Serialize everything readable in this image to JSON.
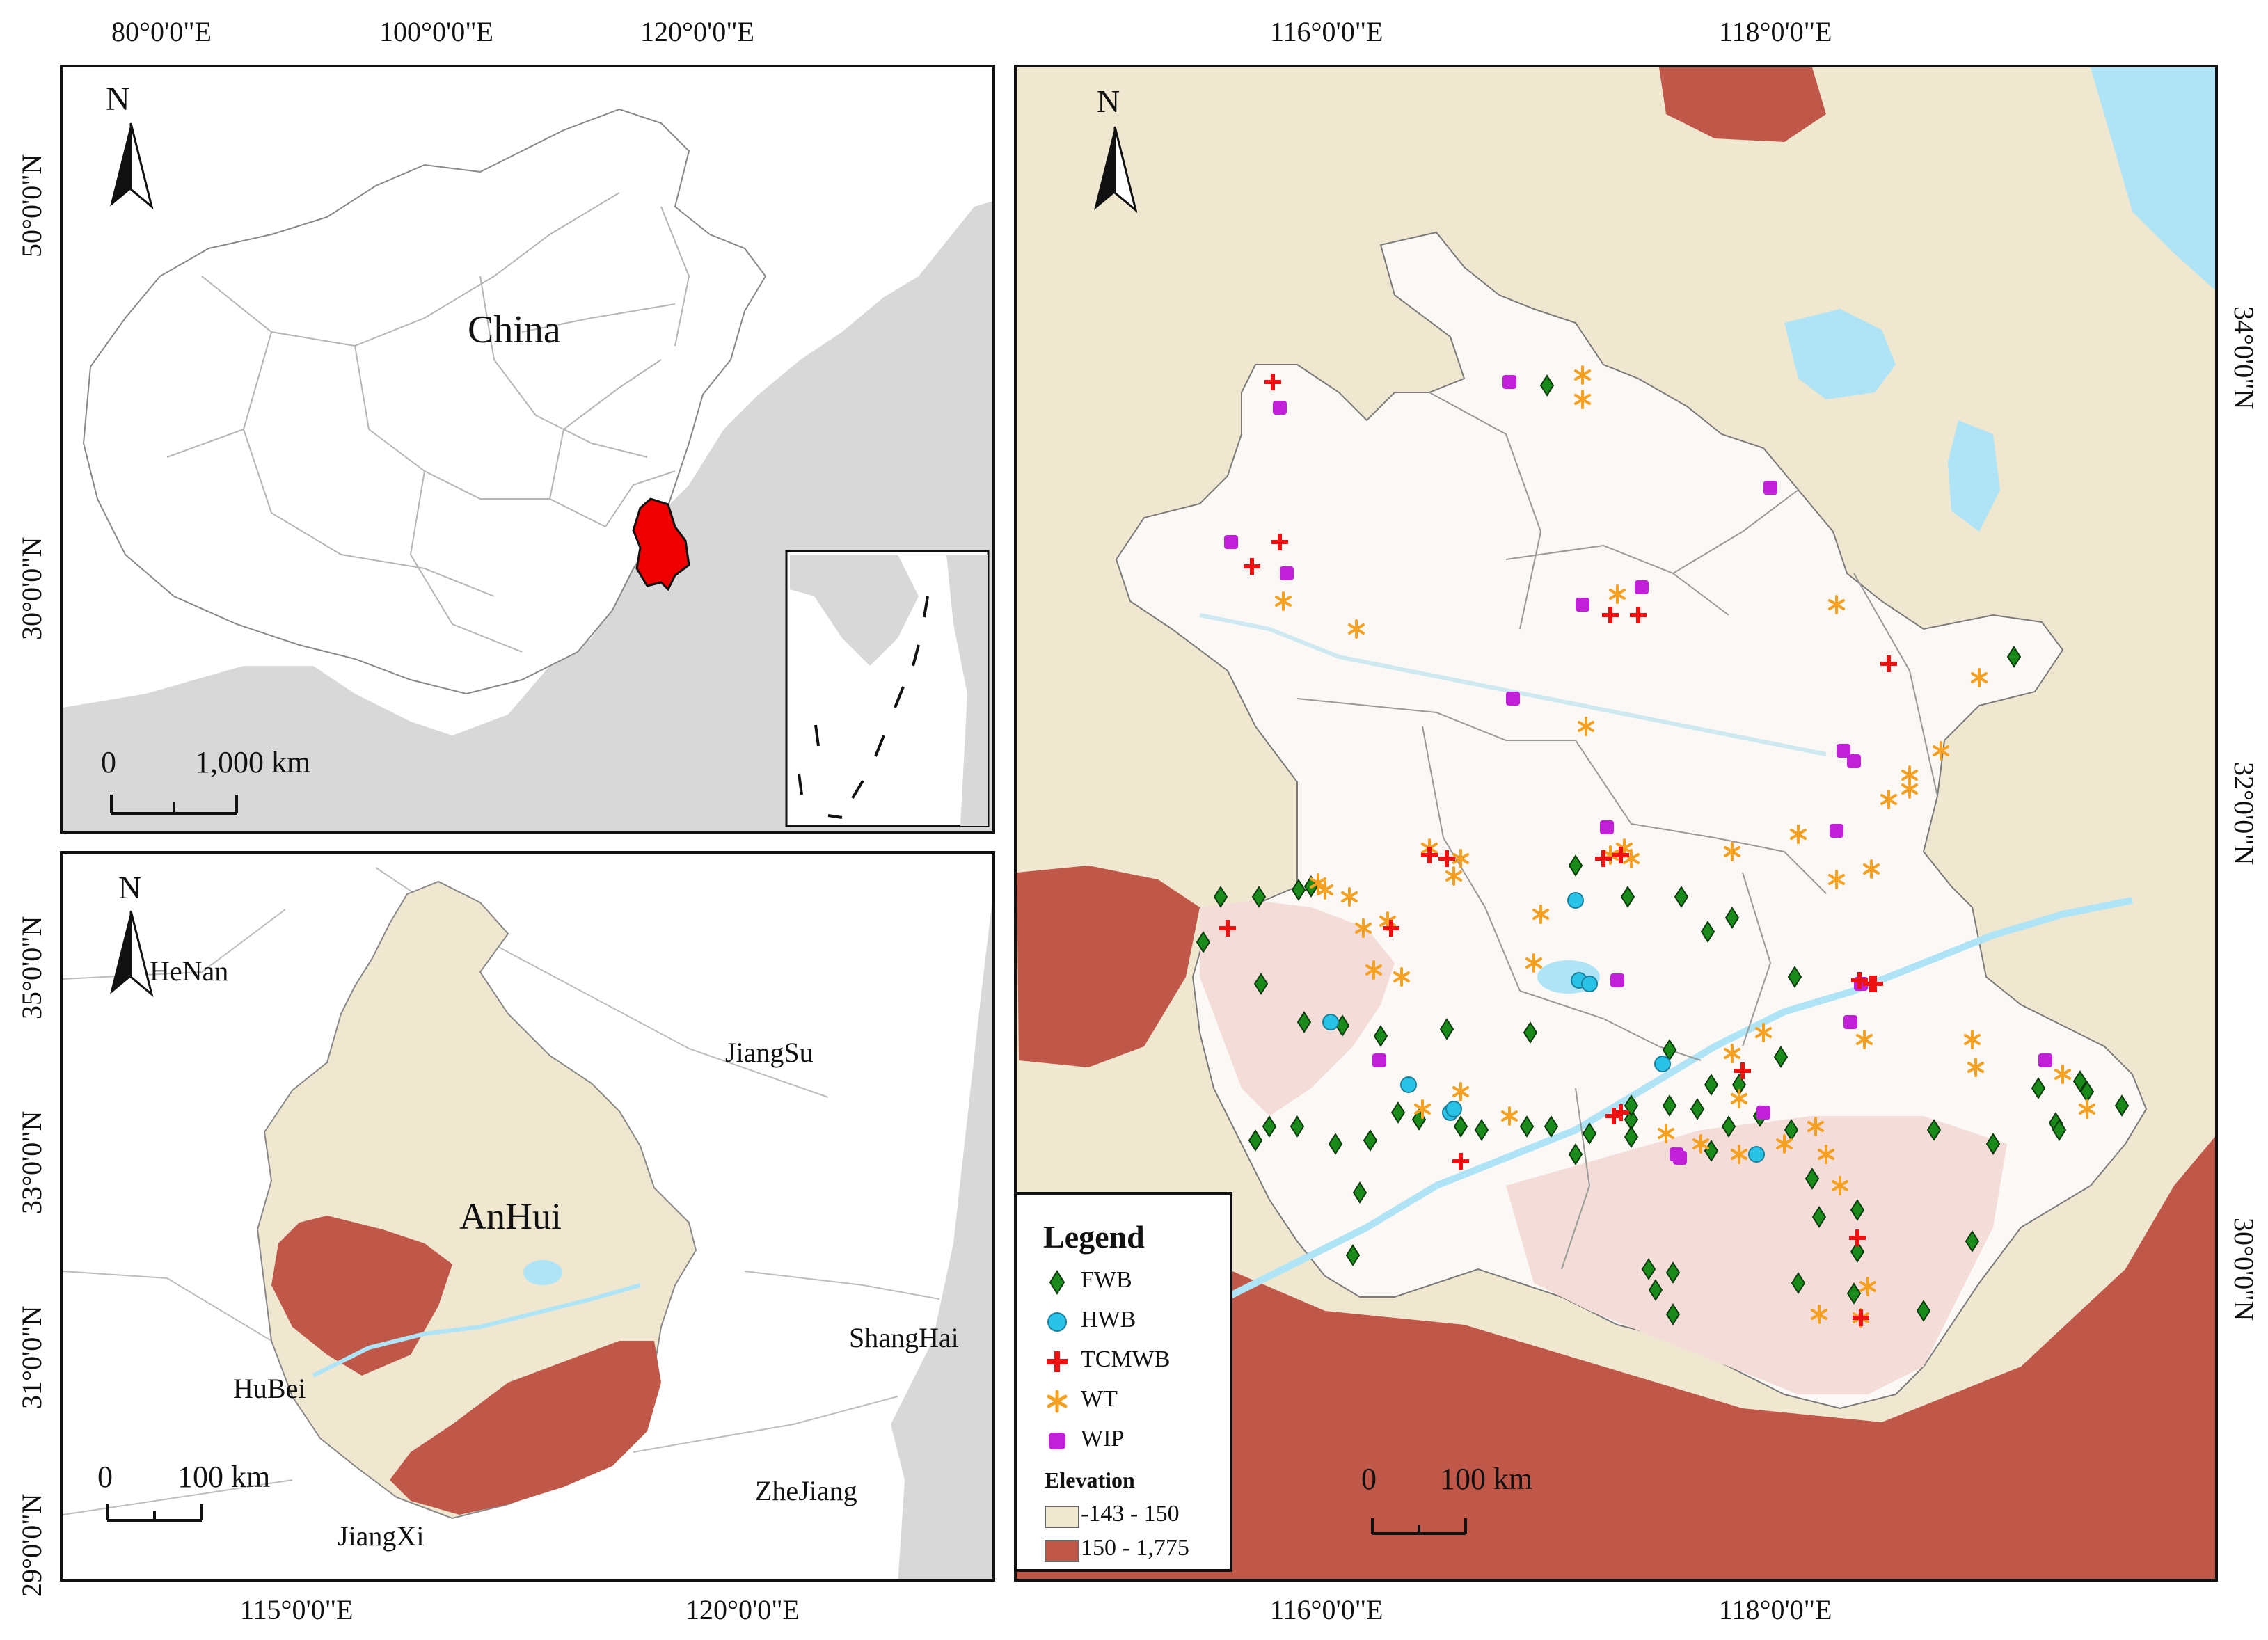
{
  "top_left_map": {
    "lon_labels": [
      "80°0'0\"E",
      "100°0'0\"E",
      "120°0'0\"E"
    ],
    "lat_labels": [
      "50°0'0\"N",
      "30°0'0\"N"
    ],
    "country_label": "China",
    "north_label": "N",
    "scale": {
      "zero": "0",
      "dist": "1,000 km"
    }
  },
  "bottom_left_map": {
    "lon_labels": [
      "115°0'0\"E",
      "120°0'0\"E"
    ],
    "lat_labels": [
      "35°0'0\"N",
      "33°0'0\"N",
      "31°0'0\"N",
      "29°0'0\"N"
    ],
    "north_label": "N",
    "provinces": [
      "HeNan",
      "JiangSu",
      "AnHui",
      "ShangHai",
      "HuBei",
      "ZheJiang",
      "JiangXi"
    ],
    "scale": {
      "zero": "0",
      "dist": "100 km"
    }
  },
  "right_map": {
    "lon_labels": [
      "116°0'0\"E",
      "118°0'0\"E"
    ],
    "lat_labels": [
      "34°0'0\"N",
      "32°0'0\"N",
      "30°0'0\"N"
    ],
    "north_label": "N",
    "scale": {
      "zero": "0",
      "dist": "100 km"
    }
  },
  "legend": {
    "title": "Legend",
    "items": [
      {
        "label": "FWB",
        "color": "#1a8a1a",
        "symbol": "diamond"
      },
      {
        "label": "HWB",
        "color": "#29c3e8",
        "symbol": "circle"
      },
      {
        "label": "TCMWB",
        "color": "#ee1111",
        "symbol": "cross"
      },
      {
        "label": "WT",
        "color": "#f5a020",
        "symbol": "asterisk"
      },
      {
        "label": "WIP",
        "color": "#c21fd8",
        "symbol": "square"
      }
    ],
    "elevation_title": "Elevation",
    "elevation_classes": [
      {
        "label": "-143 - 150",
        "color": "#f0e8d0"
      },
      {
        "label": "150 - 1,775",
        "color": "#c0584a"
      }
    ]
  },
  "colors": {
    "land_low": "#efe7d0",
    "land_high": "#c0584a",
    "water": "#aee4f6",
    "anhui_fill": "#fbf8f5",
    "highlight_province": "#ee0000",
    "neighbor_grey": "#d8d8d8"
  },
  "sites": {
    "FWB": [
      [
        2219,
        550
      ],
      [
        1750,
        1285
      ],
      [
        1805,
        1285
      ],
      [
        1862,
        1275
      ],
      [
        1880,
        1270
      ],
      [
        1725,
        1350
      ],
      [
        1808,
        1410
      ],
      [
        1870,
        1465
      ],
      [
        1925,
        1470
      ],
      [
        2335,
        1285
      ],
      [
        2412,
        1285
      ],
      [
        2395,
        1505
      ],
      [
        2455,
        1555
      ],
      [
        2495,
        1555
      ],
      [
        2555,
        1515
      ],
      [
        2525,
        1600
      ],
      [
        2600,
        1690
      ],
      [
        2775,
        1620
      ],
      [
        2860,
        1640
      ],
      [
        2950,
        1610
      ],
      [
        2995,
        1565
      ],
      [
        3045,
        1585
      ],
      [
        1800,
        1635
      ],
      [
        1820,
        1615
      ],
      [
        1860,
        1615
      ],
      [
        1915,
        1640
      ],
      [
        2005,
        1595
      ],
      [
        2035,
        1605
      ],
      [
        1965,
        1635
      ],
      [
        2095,
        1615
      ],
      [
        2125,
        1620
      ],
      [
        2190,
        1615
      ],
      [
        2225,
        1615
      ],
      [
        2280,
        1625
      ],
      [
        2340,
        1605
      ],
      [
        2395,
        1585
      ],
      [
        2435,
        1590
      ],
      [
        2480,
        1615
      ],
      [
        2570,
        1620
      ],
      [
        1950,
        1710
      ],
      [
        1940,
        1800
      ],
      [
        2365,
        1820
      ],
      [
        2400,
        1825
      ],
      [
        2665,
        1735
      ],
      [
        2665,
        1795
      ],
      [
        2375,
        1850
      ],
      [
        2400,
        1885
      ],
      [
        2580,
        1840
      ],
      [
        2660,
        1855
      ],
      [
        2760,
        1880
      ],
      [
        2830,
        1780
      ],
      [
        2890,
        940
      ],
      [
        2575,
        1400
      ],
      [
        2260,
        1240
      ],
      [
        2485,
        1315
      ],
      [
        2925,
        1560
      ],
      [
        2985,
        1550
      ],
      [
        2955,
        1620
      ],
      [
        2340,
        1630
      ],
      [
        2195,
        1480
      ],
      [
        1980,
        1485
      ],
      [
        2075,
        1475
      ],
      [
        2260,
        1655
      ],
      [
        2340,
        1585
      ],
      [
        2455,
        1650
      ],
      [
        2610,
        1745
      ],
      [
        2450,
        1335
      ]
    ],
    "HWB": [
      [
        1908,
        1465
      ],
      [
        2020,
        1555
      ],
      [
        2080,
        1595
      ],
      [
        2260,
        1290
      ],
      [
        2520,
        1655
      ],
      [
        2265,
        1405
      ],
      [
        2280,
        1410
      ],
      [
        2085,
        1590
      ],
      [
        2385,
        1525
      ]
    ],
    "TCMWB": [
      [
        1825,
        545
      ],
      [
        1835,
        775
      ],
      [
        1795,
        810
      ],
      [
        2310,
        880
      ],
      [
        2350,
        880
      ],
      [
        2050,
        1225
      ],
      [
        2075,
        1230
      ],
      [
        1760,
        1330
      ],
      [
        1995,
        1330
      ],
      [
        2325,
        1595
      ],
      [
        2315,
        1600
      ],
      [
        2095,
        1665
      ],
      [
        2500,
        1535
      ],
      [
        2665,
        1775
      ],
      [
        2670,
        1890
      ],
      [
        2710,
        950
      ],
      [
        2690,
        1410
      ],
      [
        2668,
        1405
      ],
      [
        2685,
        1410
      ],
      [
        2325,
        1225
      ],
      [
        2300,
        1230
      ]
    ],
    "WT": [
      [
        2270,
        535
      ],
      [
        2270,
        570
      ],
      [
        2635,
        865
      ],
      [
        1840,
        860
      ],
      [
        1945,
        900
      ],
      [
        2275,
        1040
      ],
      [
        2050,
        1215
      ],
      [
        2095,
        1230
      ],
      [
        2085,
        1255
      ],
      [
        2485,
        1220
      ],
      [
        2580,
        1195
      ],
      [
        2635,
        1260
      ],
      [
        2685,
        1245
      ],
      [
        2740,
        1130
      ],
      [
        2785,
        1075
      ],
      [
        2740,
        1110
      ],
      [
        2710,
        1145
      ],
      [
        1890,
        1265
      ],
      [
        1900,
        1275
      ],
      [
        1990,
        1320
      ],
      [
        2010,
        1400
      ],
      [
        1970,
        1390
      ],
      [
        1955,
        1330
      ],
      [
        2040,
        1590
      ],
      [
        2165,
        1600
      ],
      [
        2095,
        1565
      ],
      [
        2200,
        1380
      ],
      [
        2210,
        1310
      ],
      [
        2310,
        1225
      ],
      [
        2330,
        1215
      ],
      [
        2340,
        1230
      ],
      [
        2530,
        1480
      ],
      [
        2495,
        1575
      ],
      [
        2440,
        1640
      ],
      [
        2495,
        1655
      ],
      [
        2605,
        1615
      ],
      [
        2620,
        1655
      ],
      [
        2640,
        1700
      ],
      [
        2680,
        1845
      ],
      [
        2610,
        1885
      ],
      [
        2670,
        1890
      ],
      [
        2390,
        1625
      ],
      [
        2830,
        1490
      ],
      [
        2835,
        1530
      ],
      [
        2960,
        1540
      ],
      [
        2995,
        1590
      ],
      [
        2840,
        970
      ],
      [
        2560,
        1640
      ],
      [
        2485,
        1510
      ],
      [
        1935,
        1285
      ],
      [
        2675,
        1490
      ],
      [
        2320,
        850
      ]
    ],
    "WIP": [
      [
        2165,
        545
      ],
      [
        2540,
        697
      ],
      [
        2270,
        865
      ],
      [
        2355,
        840
      ],
      [
        2645,
        1075
      ],
      [
        2660,
        1090
      ],
      [
        2635,
        1190
      ],
      [
        2305,
        1185
      ],
      [
        2170,
        1000
      ],
      [
        1765,
        775
      ],
      [
        1845,
        820
      ],
      [
        1835,
        582
      ],
      [
        1978,
        1520
      ],
      [
        2320,
        1405
      ],
      [
        2655,
        1465
      ],
      [
        2670,
        1410
      ],
      [
        2405,
        1655
      ],
      [
        2935,
        1520
      ],
      [
        2530,
        1595
      ],
      [
        2410,
        1660
      ]
    ]
  }
}
